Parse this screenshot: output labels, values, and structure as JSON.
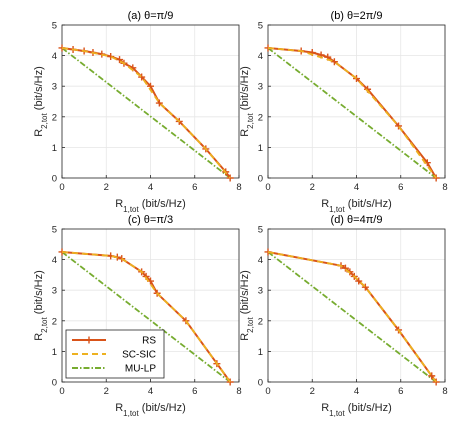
{
  "figure": {
    "legend": {
      "placement": "bottom-left of panel (c)",
      "entries": [
        {
          "name": "RS",
          "color": "#d95319",
          "style": "solid-plus"
        },
        {
          "name": "SC-SIC",
          "color": "#edb120",
          "style": "dashed"
        },
        {
          "name": "MU-LP",
          "color": "#77ac30",
          "style": "dashdot"
        }
      ]
    },
    "xlabel": {
      "main": "R",
      "sub": "1,tot",
      "unit": " (bit/s/Hz)"
    },
    "ylabel": {
      "main": "R",
      "sub": "2,tot",
      "unit": " (bit/s/Hz)"
    },
    "xticks": [
      "0",
      "2",
      "4",
      "6",
      "8"
    ],
    "yticks": [
      "0",
      "1",
      "2",
      "3",
      "4",
      "5"
    ],
    "xlim": [
      0,
      8
    ],
    "ylim": [
      0,
      5
    ],
    "grid": true
  },
  "chart_data": [
    {
      "type": "line",
      "title": "(a) θ=π/9",
      "xlabel": "R1,tot (bit/s/Hz)",
      "ylabel": "R2,tot (bit/s/Hz)",
      "xlim": [
        0,
        8
      ],
      "ylim": [
        0,
        5
      ],
      "grid": true,
      "series": [
        {
          "name": "RS",
          "x": [
            0,
            0.5,
            1.0,
            1.4,
            1.8,
            2.2,
            2.6,
            2.8,
            3.2,
            3.6,
            4.0,
            4.4,
            5.3,
            6.5,
            7.4,
            7.6
          ],
          "y": [
            4.25,
            4.2,
            4.15,
            4.1,
            4.05,
            3.97,
            3.87,
            3.75,
            3.6,
            3.3,
            3.0,
            2.45,
            1.85,
            0.95,
            0.2,
            0
          ]
        },
        {
          "name": "SC-SIC",
          "x": [
            0,
            1.0,
            2.2,
            2.8,
            3.6,
            4.4,
            5.3,
            6.5,
            7.6
          ],
          "y": [
            4.25,
            4.15,
            3.97,
            3.75,
            3.3,
            2.45,
            1.85,
            0.95,
            0
          ]
        },
        {
          "name": "MU-LP",
          "x": [
            0,
            7.6
          ],
          "y": [
            4.25,
            0
          ]
        }
      ]
    },
    {
      "type": "line",
      "title": "(b) θ=2π/9",
      "xlabel": "R1,tot (bit/s/Hz)",
      "ylabel": "R2,tot (bit/s/Hz)",
      "xlim": [
        0,
        8
      ],
      "ylim": [
        0,
        5
      ],
      "grid": true,
      "series": [
        {
          "name": "RS",
          "x": [
            0,
            1.5,
            2.0,
            2.4,
            2.7,
            3.0,
            4.0,
            4.5,
            5.9,
            7.2,
            7.6
          ],
          "y": [
            4.25,
            4.15,
            4.1,
            4.02,
            3.95,
            3.8,
            3.25,
            2.9,
            1.7,
            0.5,
            0
          ]
        },
        {
          "name": "SC-SIC",
          "x": [
            0,
            1.5,
            3.0,
            4.0,
            5.9,
            7.6
          ],
          "y": [
            4.25,
            4.15,
            3.8,
            3.25,
            1.7,
            0
          ]
        },
        {
          "name": "MU-LP",
          "x": [
            0,
            7.6
          ],
          "y": [
            4.25,
            0
          ]
        }
      ]
    },
    {
      "type": "line",
      "title": "(c) θ=π/3",
      "xlabel": "R1,tot (bit/s/Hz)",
      "ylabel": "R2,tot (bit/s/Hz)",
      "xlim": [
        0,
        8
      ],
      "ylim": [
        0,
        5
      ],
      "grid": true,
      "series": [
        {
          "name": "RS",
          "x": [
            0,
            2.2,
            2.5,
            2.7,
            3.6,
            3.8,
            4.0,
            4.3,
            5.6,
            7.0,
            7.6
          ],
          "y": [
            4.25,
            4.12,
            4.08,
            4.03,
            3.6,
            3.45,
            3.3,
            2.9,
            2.0,
            0.6,
            0
          ]
        },
        {
          "name": "SC-SIC",
          "x": [
            0,
            2.2,
            2.7,
            3.6,
            4.3,
            5.6,
            7.0,
            7.6
          ],
          "y": [
            4.25,
            4.12,
            4.03,
            3.6,
            2.9,
            2.0,
            0.6,
            0
          ]
        },
        {
          "name": "MU-LP",
          "x": [
            0,
            7.6
          ],
          "y": [
            4.25,
            0
          ]
        }
      ]
    },
    {
      "type": "line",
      "title": "(d) θ=4π/9",
      "xlabel": "R1,tot (bit/s/Hz)",
      "ylabel": "R2,tot (bit/s/Hz)",
      "xlim": [
        0,
        8
      ],
      "ylim": [
        0,
        5
      ],
      "grid": true,
      "series": [
        {
          "name": "RS",
          "x": [
            0,
            3.3,
            3.5,
            3.7,
            3.9,
            4.1,
            4.4,
            5.9,
            7.4,
            7.6
          ],
          "y": [
            4.25,
            3.8,
            3.72,
            3.6,
            3.45,
            3.3,
            3.1,
            1.7,
            0.2,
            0
          ]
        },
        {
          "name": "SC-SIC",
          "x": [
            0,
            3.3,
            3.9,
            4.4,
            5.9,
            7.6
          ],
          "y": [
            4.25,
            3.8,
            3.45,
            3.1,
            1.7,
            0
          ]
        },
        {
          "name": "MU-LP",
          "x": [
            0,
            7.6
          ],
          "y": [
            4.25,
            0
          ]
        }
      ]
    }
  ]
}
